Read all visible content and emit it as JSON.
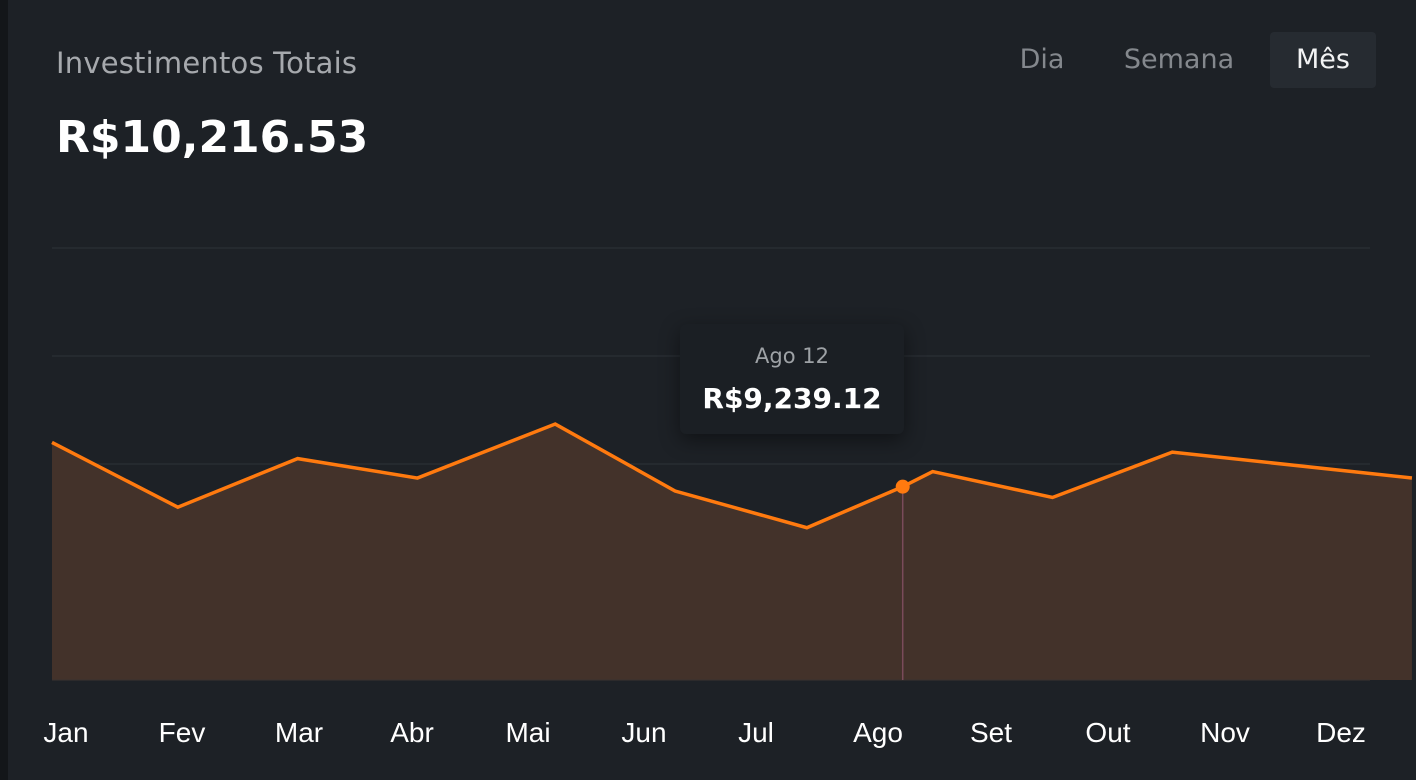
{
  "header": {
    "title": "Investimentos Totais",
    "total": "R$10,216.53"
  },
  "tabs": [
    {
      "label": "Dia",
      "active": false
    },
    {
      "label": "Semana",
      "active": false
    },
    {
      "label": "Mês",
      "active": true
    }
  ],
  "tooltip": {
    "date": "Ago 12",
    "value": "R$9,239.12"
  },
  "colors": {
    "line": "#ff7a0f",
    "fill": "#43322a",
    "grid": "#2d3238",
    "cursor": "#7a4b5a"
  },
  "chart_data": {
    "type": "area",
    "categories": [
      "Jan",
      "Fev",
      "Mar",
      "Abr",
      "Mai",
      "Jun",
      "Jul",
      "Ago",
      "Set",
      "Out",
      "Nov",
      "Dez"
    ],
    "x": [
      0,
      1.05,
      2.05,
      3.05,
      4.2,
      5.2,
      6.3,
      7.1,
      7.35,
      8.35,
      9.35,
      11.35
    ],
    "values": [
      70,
      40,
      62.5,
      53.5,
      78.5,
      47.5,
      30.5,
      49.5,
      56.5,
      44.5,
      65.5,
      53.5
    ],
    "ylim": [
      -40,
      160
    ],
    "highlight": {
      "x": 7.1,
      "value": 49.5
    },
    "grid": true,
    "xlabel": "",
    "ylabel": ""
  }
}
